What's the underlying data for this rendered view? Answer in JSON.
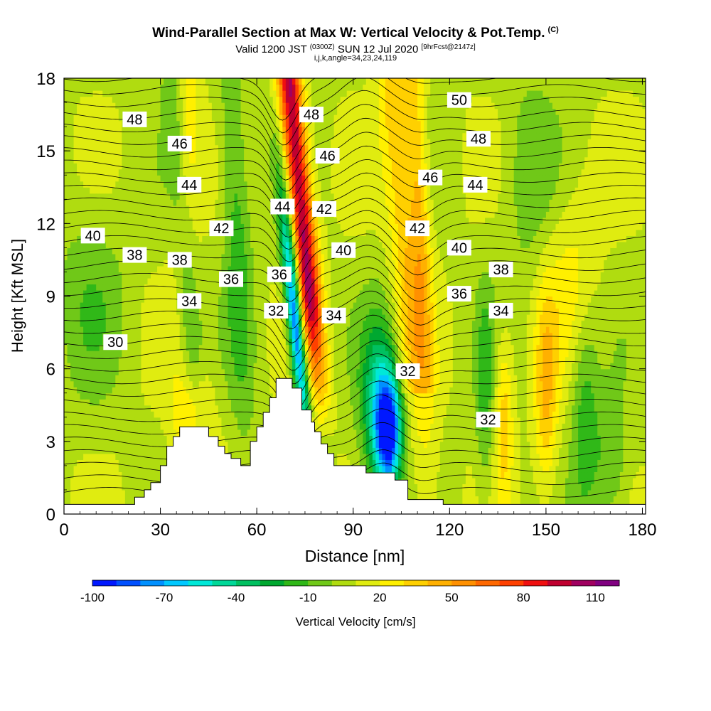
{
  "title": {
    "main": "Wind-Parallel Section at Max W: Vertical Velocity & Pot.Temp.",
    "copyright": "(C)",
    "valid_prefix": "Valid 1200 JST",
    "valid_utc": "(0300Z)",
    "valid_date": "SUN 12 Jul 2020",
    "forecast": "[9hrFcst@2147z]",
    "params": "i,j,k,angle=34,23,24,119"
  },
  "chart_data": {
    "type": "heatmap",
    "xlabel": "Distance [nm]",
    "ylabel": "Height [Kft MSL]",
    "xlim": [
      0,
      181
    ],
    "ylim": [
      0,
      18
    ],
    "xticks": [
      0,
      30,
      60,
      90,
      120,
      150,
      180
    ],
    "yticks": [
      0,
      3,
      6,
      9,
      12,
      15,
      18
    ],
    "colorbar": {
      "label": "Vertical Velocity [cm/s]",
      "tick_labels": [
        "-100",
        "-70",
        "-40",
        "-10",
        "20",
        "50",
        "80",
        "110"
      ],
      "tick_values": [
        -100,
        -70,
        -40,
        -10,
        20,
        50,
        80,
        110
      ],
      "range": [
        -100,
        120
      ],
      "colors": [
        "#0018ff",
        "#0050ff",
        "#0090ff",
        "#00c8ff",
        "#00e8d8",
        "#00d898",
        "#00c060",
        "#00a830",
        "#30b818",
        "#70c818",
        "#b0dc10",
        "#e0ec10",
        "#fff000",
        "#ffd000",
        "#ffb000",
        "#ff9000",
        "#ff6800",
        "#ff4000",
        "#f01010",
        "#c00030",
        "#a00060",
        "#800080"
      ]
    },
    "terrain": [
      [
        0,
        0.4
      ],
      [
        22,
        0.4
      ],
      [
        22,
        0.7
      ],
      [
        25,
        0.7
      ],
      [
        25,
        1.0
      ],
      [
        27,
        1.0
      ],
      [
        27,
        1.3
      ],
      [
        30,
        1.3
      ],
      [
        30,
        2.0
      ],
      [
        32,
        2.0
      ],
      [
        32,
        2.8
      ],
      [
        34,
        2.8
      ],
      [
        34,
        3.2
      ],
      [
        36,
        3.2
      ],
      [
        36,
        3.6
      ],
      [
        45,
        3.6
      ],
      [
        45,
        3.2
      ],
      [
        48,
        3.2
      ],
      [
        48,
        2.8
      ],
      [
        50,
        2.8
      ],
      [
        50,
        2.5
      ],
      [
        52,
        2.5
      ],
      [
        52,
        2.3
      ],
      [
        55,
        2.3
      ],
      [
        55,
        2.0
      ],
      [
        58,
        2.0
      ],
      [
        58,
        3.0
      ],
      [
        60,
        3.0
      ],
      [
        60,
        3.6
      ],
      [
        62,
        3.6
      ],
      [
        62,
        4.2
      ],
      [
        64,
        4.2
      ],
      [
        64,
        4.8
      ],
      [
        66,
        4.8
      ],
      [
        66,
        5.6
      ],
      [
        71,
        5.6
      ],
      [
        71,
        5.2
      ],
      [
        74,
        5.2
      ],
      [
        74,
        4.3
      ],
      [
        77,
        4.3
      ],
      [
        77,
        3.8
      ],
      [
        78,
        3.8
      ],
      [
        78,
        3.4
      ],
      [
        80,
        3.4
      ],
      [
        80,
        2.9
      ],
      [
        82,
        2.9
      ],
      [
        82,
        2.5
      ],
      [
        84,
        2.5
      ],
      [
        84,
        2.0
      ],
      [
        94,
        2.0
      ],
      [
        94,
        1.7
      ],
      [
        103,
        1.7
      ],
      [
        103,
        1.4
      ],
      [
        107,
        1.4
      ],
      [
        107,
        0.6
      ],
      [
        118,
        0.6
      ],
      [
        118,
        0.4
      ],
      [
        181,
        0.4
      ]
    ],
    "contour_labels": [
      {
        "text": "48",
        "x": 22,
        "y": 16.3
      },
      {
        "text": "46",
        "x": 36,
        "y": 15.3
      },
      {
        "text": "44",
        "x": 39,
        "y": 13.6
      },
      {
        "text": "42",
        "x": 49,
        "y": 11.8
      },
      {
        "text": "40",
        "x": 9,
        "y": 11.5
      },
      {
        "text": "38",
        "x": 22,
        "y": 10.7
      },
      {
        "text": "38",
        "x": 36,
        "y": 10.5
      },
      {
        "text": "36",
        "x": 52,
        "y": 9.7
      },
      {
        "text": "34",
        "x": 39,
        "y": 8.8
      },
      {
        "text": "30",
        "x": 16,
        "y": 7.1
      },
      {
        "text": "48",
        "x": 77,
        "y": 16.5
      },
      {
        "text": "46",
        "x": 82,
        "y": 14.8
      },
      {
        "text": "44",
        "x": 68,
        "y": 12.7
      },
      {
        "text": "42",
        "x": 81,
        "y": 12.6
      },
      {
        "text": "36",
        "x": 67,
        "y": 9.9
      },
      {
        "text": "40",
        "x": 87,
        "y": 10.9
      },
      {
        "text": "32",
        "x": 66,
        "y": 8.4
      },
      {
        "text": "34",
        "x": 84,
        "y": 8.2
      },
      {
        "text": "50",
        "x": 123,
        "y": 17.1
      },
      {
        "text": "48",
        "x": 129,
        "y": 15.5
      },
      {
        "text": "46",
        "x": 114,
        "y": 13.9
      },
      {
        "text": "44",
        "x": 128,
        "y": 13.6
      },
      {
        "text": "42",
        "x": 110,
        "y": 11.8
      },
      {
        "text": "40",
        "x": 123,
        "y": 11.0
      },
      {
        "text": "38",
        "x": 136,
        "y": 10.1
      },
      {
        "text": "36",
        "x": 123,
        "y": 9.1
      },
      {
        "text": "34",
        "x": 136,
        "y": 8.4
      },
      {
        "text": "32",
        "x": 107,
        "y": 5.9
      },
      {
        "text": "32",
        "x": 132,
        "y": 3.9
      }
    ]
  }
}
